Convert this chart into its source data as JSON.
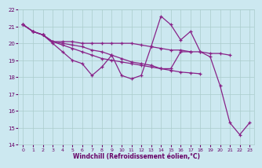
{
  "xlabel": "Windchill (Refroidissement éolien,°C)",
  "background_color": "#cce8f0",
  "grid_color": "#aacccc",
  "line_color": "#882288",
  "xlim": [
    -0.5,
    23.5
  ],
  "ylim": [
    14,
    22
  ],
  "xticks": [
    0,
    1,
    2,
    3,
    4,
    5,
    6,
    7,
    8,
    9,
    10,
    11,
    12,
    13,
    14,
    15,
    16,
    17,
    18,
    19,
    20,
    21,
    22,
    23
  ],
  "yticks": [
    14,
    15,
    16,
    17,
    18,
    19,
    20,
    21,
    22
  ],
  "line1_x": [
    0,
    1,
    2,
    3,
    4,
    5,
    6,
    7,
    8,
    9,
    10,
    11,
    12,
    13,
    14,
    15,
    16,
    17,
    18,
    19,
    20,
    21,
    22,
    23
  ],
  "line1_y": [
    21.1,
    20.7,
    20.5,
    20.0,
    19.5,
    19.0,
    18.8,
    18.1,
    18.6,
    19.3,
    18.1,
    17.9,
    18.1,
    19.8,
    21.6,
    21.1,
    20.2,
    20.7,
    19.5,
    19.2,
    17.5,
    15.3,
    14.6,
    15.3
  ],
  "line2_x": [
    0,
    1,
    2,
    3,
    4,
    5,
    6,
    7,
    8,
    9,
    10,
    11,
    12,
    13,
    14,
    15,
    16,
    17,
    18,
    19,
    20,
    21
  ],
  "line2_y": [
    21.1,
    20.7,
    20.5,
    20.1,
    20.1,
    20.1,
    20.0,
    20.0,
    20.0,
    20.0,
    20.0,
    20.0,
    19.9,
    19.8,
    19.7,
    19.6,
    19.6,
    19.5,
    19.5,
    19.4,
    19.4,
    19.3
  ],
  "line3_x": [
    0,
    1,
    2,
    3,
    4,
    5,
    6,
    7,
    8,
    9,
    10,
    11,
    12,
    13,
    14,
    15,
    16,
    17,
    18
  ],
  "line3_y": [
    21.1,
    20.7,
    20.5,
    20.1,
    19.9,
    19.7,
    19.5,
    19.3,
    19.1,
    19.0,
    18.9,
    18.8,
    18.7,
    18.6,
    18.5,
    18.4,
    18.3,
    18.25,
    18.2
  ],
  "line4_x": [
    0,
    1,
    2,
    3,
    4,
    5,
    6,
    7,
    8,
    9,
    10,
    11,
    12,
    13,
    14,
    15,
    16,
    17
  ],
  "line4_y": [
    21.1,
    20.7,
    20.5,
    20.1,
    20.0,
    19.9,
    19.8,
    19.6,
    19.5,
    19.3,
    19.1,
    18.9,
    18.8,
    18.7,
    18.5,
    18.5,
    19.5,
    19.5
  ]
}
